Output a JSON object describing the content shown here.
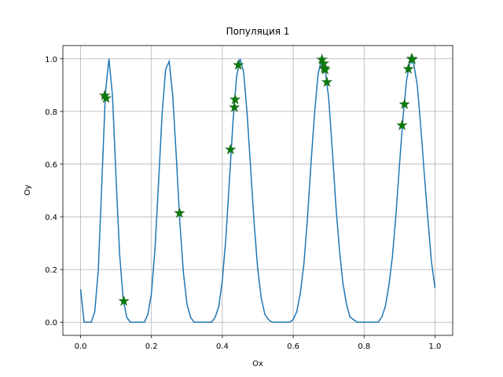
{
  "chart_data": {
    "type": "line",
    "title": "Популяция 1",
    "x_label": "Ox",
    "y_label": "Oy",
    "xlim": [
      -0.05,
      1.05
    ],
    "ylim": [
      -0.05,
      1.05
    ],
    "xticks": [
      {
        "value": 0,
        "label": "0.0"
      },
      0.2,
      0.4,
      0.6,
      0.8,
      {
        "value": 1,
        "label": "1.0"
      }
    ],
    "yticks": [
      {
        "value": 0,
        "label": "0.0"
      },
      0.2,
      0.4,
      0.6,
      0.8,
      {
        "value": 1,
        "label": "1.0"
      }
    ],
    "grid": true,
    "series": [
      {
        "type": "line",
        "color": "#1f77b4",
        "x": [
          0,
          0.01,
          0.02,
          0.03,
          0.04,
          0.05,
          0.06,
          0.07,
          0.08,
          0.09,
          0.1,
          0.11,
          0.12,
          0.13,
          0.14,
          0.15,
          0.16,
          0.17,
          0.18,
          0.19,
          0.2,
          0.21,
          0.22,
          0.23,
          0.24,
          0.25,
          0.26,
          0.27,
          0.28,
          0.29,
          0.3,
          0.31,
          0.32,
          0.33,
          0.34,
          0.35,
          0.36,
          0.37,
          0.38,
          0.39,
          0.4,
          0.41,
          0.42,
          0.43,
          0.44,
          0.45,
          0.46,
          0.47,
          0.48,
          0.49,
          0.5,
          0.51,
          0.52,
          0.53,
          0.54,
          0.55,
          0.56,
          0.57,
          0.58,
          0.59,
          0.6,
          0.61,
          0.62,
          0.63,
          0.64,
          0.65,
          0.66,
          0.67,
          0.68,
          0.69,
          0.7,
          0.71,
          0.72,
          0.73,
          0.74,
          0.75,
          0.76,
          0.77,
          0.78,
          0.79,
          0.8,
          0.81,
          0.82,
          0.83,
          0.84,
          0.85,
          0.86,
          0.87,
          0.88,
          0.89,
          0.9,
          0.91,
          0.92,
          0.93,
          0.94,
          0.95,
          0.96,
          0.97,
          0.98,
          0.99,
          1
        ],
        "values": [
          0.125,
          0,
          0,
          0,
          0.04,
          0.2,
          0.53,
          0.87,
          1,
          0.86,
          0.55,
          0.26,
          0.09,
          0.02,
          0,
          0,
          0,
          0,
          0,
          0.03,
          0.11,
          0.28,
          0.53,
          0.79,
          0.96,
          0.99,
          0.86,
          0.63,
          0.38,
          0.19,
          0.07,
          0.02,
          0,
          0,
          0,
          0,
          0,
          0,
          0.02,
          0.06,
          0.16,
          0.32,
          0.54,
          0.76,
          0.93,
          1,
          0.95,
          0.79,
          0.58,
          0.37,
          0.2,
          0.09,
          0.03,
          0.01,
          0,
          0,
          0,
          0,
          0,
          0,
          0.01,
          0.04,
          0.11,
          0.22,
          0.39,
          0.6,
          0.79,
          0.94,
          1,
          0.96,
          0.85,
          0.66,
          0.45,
          0.28,
          0.15,
          0.07,
          0.02,
          0.01,
          0,
          0,
          0,
          0,
          0,
          0,
          0,
          0.02,
          0.06,
          0.14,
          0.25,
          0.41,
          0.6,
          0.78,
          0.92,
          0.99,
          0.98,
          0.9,
          0.74,
          0.56,
          0.39,
          0.23,
          0.13
        ]
      },
      {
        "type": "scatter",
        "marker": "star",
        "color": "#008000",
        "edge_color": "#1f6f1f",
        "x": [
          0.068,
          0.072,
          0.122,
          0.279,
          0.423,
          0.434,
          0.436,
          0.445,
          0.681,
          0.686,
          0.688,
          0.69,
          0.695,
          0.907,
          0.914,
          0.925,
          0.934,
          0.936
        ],
        "values": [
          0.86,
          0.85,
          0.08,
          0.414,
          0.655,
          0.815,
          0.845,
          0.976,
          0.997,
          0.982,
          0.964,
          0.958,
          0.911,
          0.747,
          0.827,
          0.961,
          1,
          0.997
        ]
      }
    ]
  }
}
